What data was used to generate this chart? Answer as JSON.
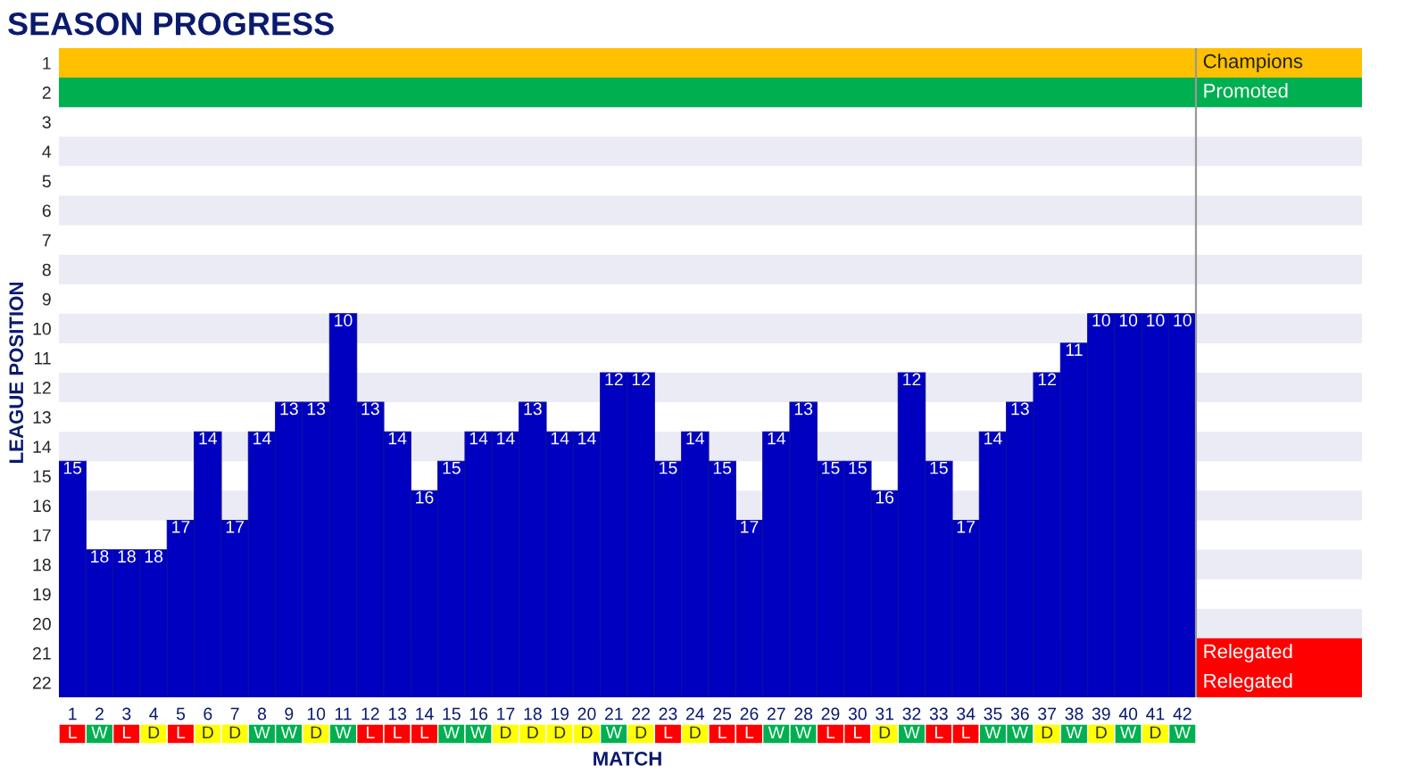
{
  "chart_data": [
    {
      "type": "bar",
      "title": "SEASON PROGRESS",
      "ylabel": "LEAGUE POSITION",
      "categories": [
        "1",
        "2",
        "3",
        "4",
        "5",
        "6",
        "7",
        "8",
        "9",
        "10",
        "11",
        "12",
        "13",
        "14",
        "15",
        "16",
        "17",
        "18",
        "19",
        "20",
        "21",
        "22",
        "23",
        "24",
        "25",
        "26",
        "27",
        "28",
        "29",
        "30",
        "31",
        "32",
        "33",
        "34",
        "35",
        "36",
        "37",
        "38",
        "39",
        "40",
        "41",
        "42"
      ],
      "base": [
        22.5,
        22.5,
        22.5,
        22.5,
        22.5,
        22.5,
        22.5,
        22.5,
        22.5,
        22.5,
        22.5,
        22.5,
        22.5,
        22.5,
        22.5,
        22.5,
        22.5,
        22.5,
        22.5,
        22.5,
        22.5,
        22.5,
        22.5,
        22.5,
        22.5,
        22.5,
        22.5,
        22.5,
        22.5,
        22.5,
        22.5,
        22.5,
        22.5,
        22.5,
        22.5,
        22.5,
        22.5,
        22.5,
        22.5,
        22.5,
        22.5,
        22.5
      ],
      "values": [
        -8,
        -5,
        -5,
        -5,
        -6,
        -9,
        -6,
        -9,
        -10,
        -10,
        -13,
        -10,
        -9,
        -7,
        -8,
        -9,
        -9,
        -10,
        -9,
        -9,
        -11,
        -11,
        -8,
        -9,
        -8,
        -6,
        -9,
        -10,
        -8,
        -8,
        -7,
        -11,
        -8,
        -6,
        -9,
        -10,
        -11,
        -12,
        -13,
        -13,
        -13,
        -13
      ],
      "value_labels": [
        "15",
        "18",
        "18",
        "18",
        "17",
        "14",
        "17",
        "14",
        "13",
        "13",
        "10",
        "13",
        "14",
        "16",
        "15",
        "14",
        "14",
        "13",
        "14",
        "14",
        "12",
        "12",
        "15",
        "14",
        "15",
        "17",
        "14",
        "13",
        "15",
        "15",
        "16",
        "12",
        "15",
        "17",
        "14",
        "13",
        "12",
        "11",
        "10",
        "10",
        "10",
        "10"
      ],
      "color": "#0000c0",
      "ylim": [
        22.5,
        0.5
      ],
      "yticks": [
        1,
        2,
        3,
        4,
        5,
        6,
        7,
        8,
        9,
        10,
        11,
        12,
        13,
        14,
        15,
        16,
        17,
        18,
        19,
        20,
        21,
        22
      ],
      "bands": [
        {
          "axis": "y",
          "from": 3.5,
          "to": 4.5,
          "color": "#ebebf5"
        },
        {
          "axis": "y",
          "from": 5.5,
          "to": 6.5,
          "color": "#ebebf5"
        },
        {
          "axis": "y",
          "from": 7.5,
          "to": 8.5,
          "color": "#ebebf5"
        },
        {
          "axis": "y",
          "from": 9.5,
          "to": 10.5,
          "color": "#ebebf5"
        },
        {
          "axis": "y",
          "from": 11.5,
          "to": 12.5,
          "color": "#ebebf5"
        },
        {
          "axis": "y",
          "from": 13.5,
          "to": 14.5,
          "color": "#ebebf5"
        },
        {
          "axis": "y",
          "from": 15.5,
          "to": 16.5,
          "color": "#ebebf5"
        },
        {
          "axis": "y",
          "from": 17.5,
          "to": 18.5,
          "color": "#ebebf5"
        },
        {
          "axis": "y",
          "from": 19.5,
          "to": 20.5,
          "color": "#ebebf5"
        },
        {
          "axis": "y",
          "from": 0.5,
          "to": 1.5,
          "label": "Champions",
          "color": "#ffc000"
        },
        {
          "axis": "y",
          "from": 1.5,
          "to": 2.5,
          "label": "Promoted",
          "color": "#00b050"
        },
        {
          "axis": "y",
          "from": 20.5,
          "to": 21.5,
          "label": "Relegated",
          "color": "#ff0000"
        },
        {
          "axis": "y",
          "from": 21.5,
          "to": 22.5,
          "label": "Relegated",
          "color": "#ff0000"
        }
      ]
    },
    {
      "type": "other",
      "xlabel": "MATCH",
      "annotations": [
        "L",
        "W",
        "L",
        "D",
        "L",
        "D",
        "D",
        "W",
        "W",
        "D",
        "W",
        "L",
        "L",
        "L",
        "W",
        "W",
        "D",
        "D",
        "D",
        "D",
        "W",
        "D",
        "L",
        "D",
        "L",
        "L",
        "W",
        "W",
        "L",
        "L",
        "D",
        "W",
        "L",
        "L",
        "W",
        "W",
        "D",
        "W",
        "D",
        "W",
        "D",
        "W"
      ],
      "colors": [
        "#ff0000",
        "#00b050",
        "#ff0000",
        "#ffff00",
        "#ff0000",
        "#ffff00",
        "#ffff00",
        "#00b050",
        "#00b050",
        "#ffff00",
        "#00b050",
        "#ff0000",
        "#ff0000",
        "#ff0000",
        "#00b050",
        "#00b050",
        "#ffff00",
        "#ffff00",
        "#ffff00",
        "#ffff00",
        "#00b050",
        "#ffff00",
        "#ff0000",
        "#ffff00",
        "#ff0000",
        "#ff0000",
        "#00b050",
        "#00b050",
        "#ff0000",
        "#ff0000",
        "#ffff00",
        "#00b050",
        "#ff0000",
        "#ff0000",
        "#00b050",
        "#00b050",
        "#ffff00",
        "#00b050",
        "#ffff00",
        "#00b050",
        "#ffff00",
        "#00b050"
      ]
    }
  ]
}
